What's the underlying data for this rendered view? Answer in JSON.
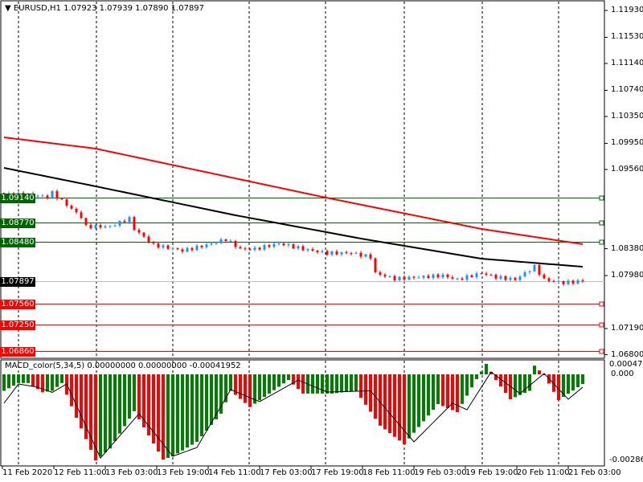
{
  "header": {
    "symbol": "EURUSD,H1",
    "ohlc": "1.07923 1.07939 1.07890 1.07897"
  },
  "macd_header": {
    "label": "MACD_color(5,34,5) 0.00000000 0.00000000 -0.00041952"
  },
  "colors": {
    "up": "#1e90ff",
    "down": "#ff0000",
    "ma_slow": "#ff0000",
    "ma_fast": "#000000",
    "support": "#ff0000",
    "resistance": "#006400",
    "hist_up": "#008000",
    "hist_down": "#ff0000"
  },
  "chart_data": {
    "type": "candlestick",
    "price_axis": {
      "max": 1.1193,
      "ticks": [
        "1.11930",
        "1.11530",
        "1.11140",
        "1.10740",
        "1.10350",
        "1.09950",
        "1.09560",
        "1.08380",
        "1.07980",
        "1.07190",
        "1.06800"
      ]
    },
    "levels": [
      {
        "value": 1.0914,
        "label": "1.09140",
        "kind": "resistance"
      },
      {
        "value": 1.0877,
        "label": "1.08770",
        "kind": "resistance"
      },
      {
        "value": 1.0848,
        "label": "1.08480",
        "kind": "resistance"
      },
      {
        "value": 1.0756,
        "label": "1.07560",
        "kind": "support"
      },
      {
        "value": 1.0725,
        "label": "1.07250",
        "kind": "support"
      },
      {
        "value": 1.0686,
        "label": "1.06860",
        "kind": "support"
      }
    ],
    "current_price": {
      "value": 1.07897,
      "label": "1.07897"
    },
    "bars": 121,
    "close_keypoints": [
      [
        0,
        1.09201
      ],
      [
        6,
        1.09177
      ],
      [
        9,
        1.09153
      ],
      [
        10,
        1.09213
      ],
      [
        12,
        1.09093
      ],
      [
        16,
        1.08854
      ],
      [
        17,
        1.0871
      ],
      [
        22,
        1.0871
      ],
      [
        26,
        1.0883
      ],
      [
        27,
        1.08674
      ],
      [
        31,
        1.08435
      ],
      [
        37,
        1.08351
      ],
      [
        42,
        1.08435
      ],
      [
        46,
        1.08519
      ],
      [
        49,
        1.08375
      ],
      [
        52,
        1.08375
      ],
      [
        57,
        1.08459
      ],
      [
        62,
        1.08375
      ],
      [
        67,
        1.08315
      ],
      [
        72,
        1.08315
      ],
      [
        76,
        1.08255
      ],
      [
        77,
        1.08016
      ],
      [
        81,
        1.07932
      ],
      [
        86,
        1.07956
      ],
      [
        91,
        1.0798
      ],
      [
        94,
        1.0792
      ],
      [
        99,
        1.08016
      ],
      [
        102,
        1.07956
      ],
      [
        106,
        1.0792
      ],
      [
        110,
        1.08112
      ],
      [
        112,
        1.0792
      ],
      [
        116,
        1.07872
      ],
      [
        120,
        1.07897
      ]
    ],
    "ma_slow_keypoints": [
      [
        0,
        1.10039
      ],
      [
        19,
        1.09871
      ],
      [
        66,
        1.09152
      ],
      [
        99,
        1.08674
      ],
      [
        120,
        1.08447
      ]
    ],
    "ma_fast_keypoints": [
      [
        0,
        1.09584
      ],
      [
        19,
        1.09309
      ],
      [
        48,
        1.08878
      ],
      [
        74,
        1.08531
      ],
      [
        99,
        1.08231
      ],
      [
        120,
        1.08111
      ]
    ],
    "macd": {
      "max_label": "0.0004721",
      "zero_label": "0.000",
      "min_label": "-0.002866",
      "min": -0.002866,
      "hist_keypoints": [
        [
          0,
          -0.00055
        ],
        [
          3,
          -0.00029
        ],
        [
          5,
          -0.00029
        ],
        [
          8,
          -0.0006
        ],
        [
          10,
          -0.00055
        ],
        [
          12,
          -0.00029
        ],
        [
          15,
          -0.00145
        ],
        [
          19,
          -0.00287
        ],
        [
          22,
          -0.00247
        ],
        [
          27,
          -0.00123
        ],
        [
          33,
          -0.00284
        ],
        [
          35,
          -0.00273
        ],
        [
          40,
          -0.00225
        ],
        [
          45,
          -0.00131
        ],
        [
          47,
          -0.00055
        ],
        [
          51,
          -0.00109
        ],
        [
          59,
          -0.00019
        ],
        [
          62,
          -0.00064
        ],
        [
          68,
          -0.00064
        ],
        [
          73,
          -0.00055
        ],
        [
          78,
          -0.00171
        ],
        [
          83,
          -0.00233
        ],
        [
          90,
          -0.00099
        ],
        [
          94,
          -0.00126
        ],
        [
          98,
          -0.00016
        ],
        [
          100,
          0.00035
        ],
        [
          102,
          -0.00019
        ],
        [
          105,
          -0.00083
        ],
        [
          109,
          -0.00055
        ],
        [
          110,
          0.00029
        ],
        [
          112,
          -3e-05
        ],
        [
          115,
          -0.00086
        ],
        [
          120,
          -0.00032
        ]
      ],
      "signal_keypoints": [
        [
          0,
          -0.00096
        ],
        [
          3,
          -0.00032
        ],
        [
          7,
          -0.00043
        ],
        [
          10,
          -0.0006
        ],
        [
          13,
          -0.00032
        ],
        [
          20,
          -0.00279
        ],
        [
          28,
          -0.00131
        ],
        [
          35,
          -0.00273
        ],
        [
          40,
          -0.00244
        ],
        [
          47,
          -0.00051
        ],
        [
          53,
          -0.00091
        ],
        [
          61,
          -0.00019
        ],
        [
          67,
          -0.00059
        ],
        [
          76,
          -0.00055
        ],
        [
          85,
          -0.00225
        ],
        [
          93,
          -0.00096
        ],
        [
          96,
          -0.00118
        ],
        [
          101,
          8e-05
        ],
        [
          107,
          -0.00064
        ],
        [
          112,
          3e-05
        ],
        [
          117,
          -0.00083
        ],
        [
          120,
          -0.00043
        ]
      ]
    },
    "time_labels": [
      "11 Feb 2020",
      "12 Feb 11:00",
      "13 Feb 03:00",
      "13 Feb 19:00",
      "14 Feb 11:00",
      "17 Feb 03:00",
      "17 Feb 19:00",
      "18 Feb 11:00",
      "19 Feb 03:00",
      "19 Feb 19:00",
      "20 Feb 11:00",
      "21 Feb 03:00"
    ]
  }
}
